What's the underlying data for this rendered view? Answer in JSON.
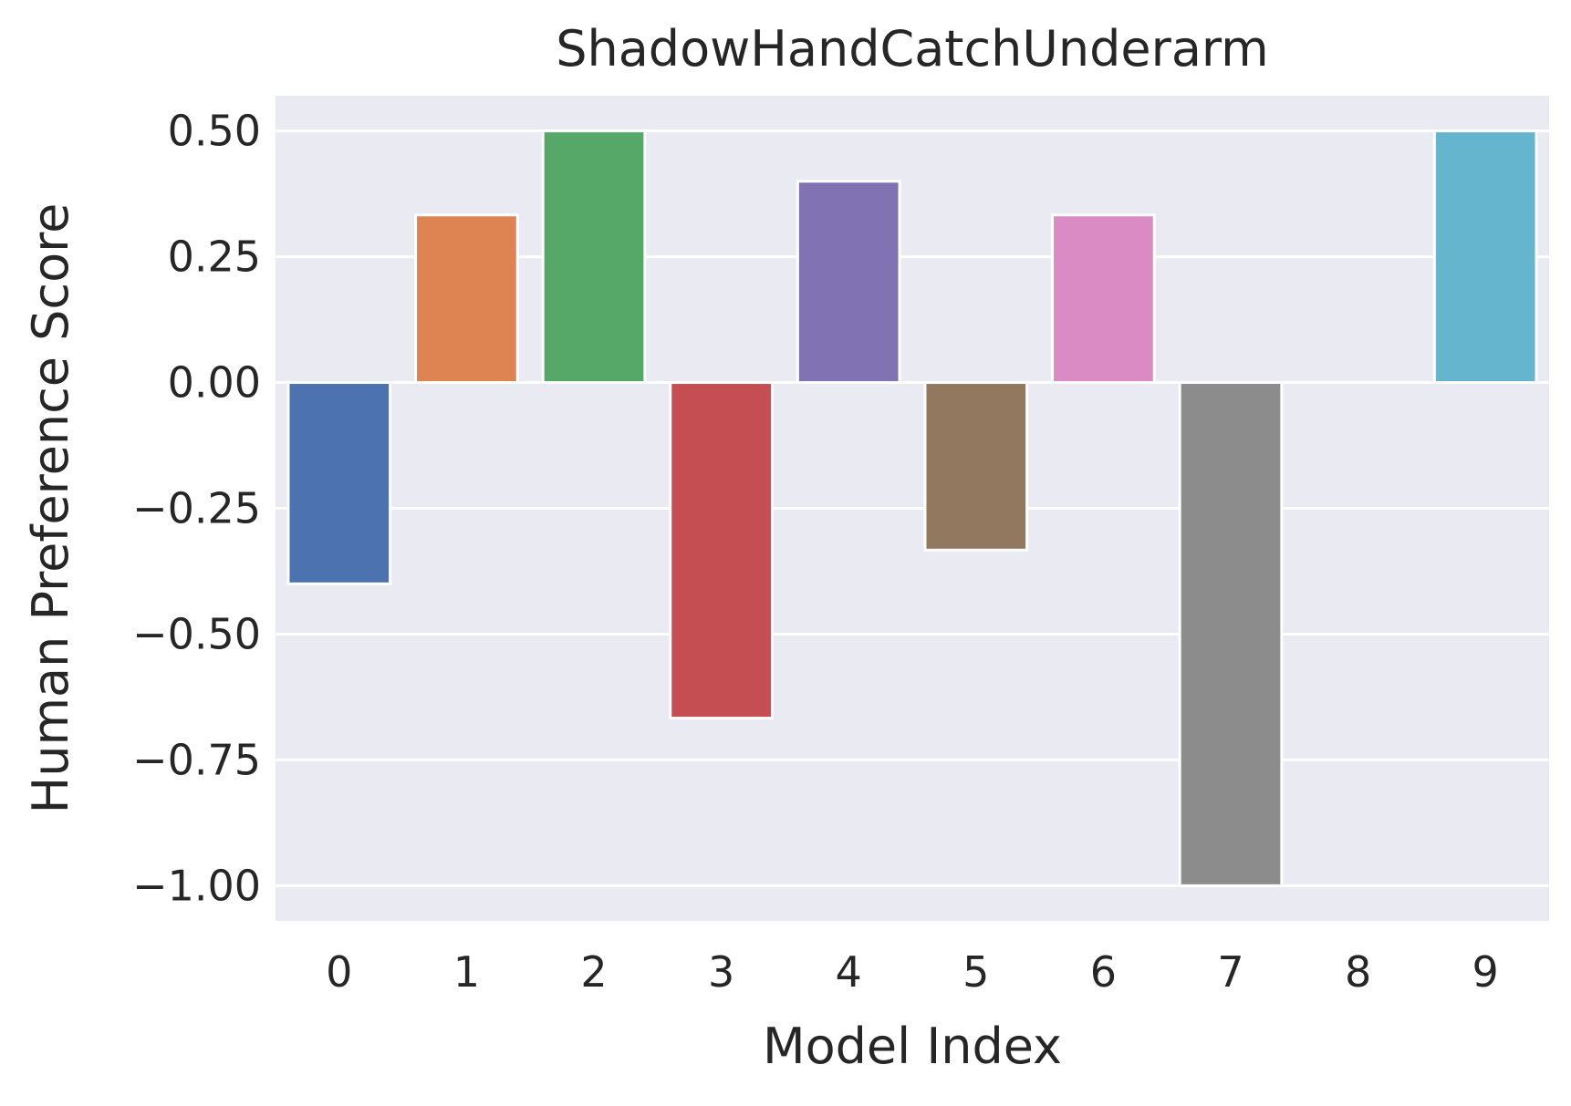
{
  "chart_data": {
    "type": "bar",
    "title": "ShadowHandCatchUnderarm",
    "xlabel": "Model Index",
    "ylabel": "Human Preference Score",
    "categories": [
      "0",
      "1",
      "2",
      "3",
      "4",
      "5",
      "6",
      "7",
      "8",
      "9"
    ],
    "values": [
      -0.4,
      0.333,
      0.5,
      -0.667,
      0.4,
      -0.333,
      0.333,
      -1.0,
      0.0,
      0.5
    ],
    "colors": [
      "#4c72b0",
      "#dd8452",
      "#55a868",
      "#c44e52",
      "#8172b3",
      "#937860",
      "#da8bc3",
      "#8c8c8c",
      "#ccb974",
      "#64b5cd"
    ],
    "ylim": [
      -1.07,
      0.57
    ],
    "yticks": [
      0.5,
      0.25,
      0.0,
      -0.25,
      -0.5,
      -0.75,
      -1.0
    ],
    "ytick_labels": [
      "0.50",
      "0.25",
      "0.00",
      "−0.25",
      "−0.50",
      "−0.75",
      "−1.00"
    ],
    "grid": true,
    "legend": "none",
    "background": "#eaeaf2"
  }
}
